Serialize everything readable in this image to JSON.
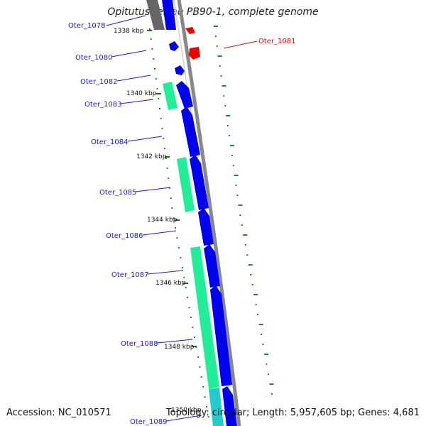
{
  "title": "Opitutus terrae PB90-1, complete genome",
  "footer": {
    "accession": "Accession: NC_010571",
    "topology": "Topology: circular; Length: 5,957,605 bp; Genes: 4,681"
  },
  "colors": {
    "forward_gene": "#0000ee",
    "reverse_gene": "#ee0000",
    "cds_forward": "#22ee99",
    "cds_other": "#22cccc",
    "backbone": "#888888",
    "gc_dots": "#228822",
    "label_forward": "#1a1acc",
    "label_reverse": "#cc1111",
    "other_gene": "#666666"
  },
  "kbp_ticks": [
    "1338 kbp",
    "1340 kbp",
    "1342 kbp",
    "1344 kbp",
    "1346 kbp",
    "1348 kbp",
    "1350 kbp"
  ],
  "gene_labels": [
    {
      "text": "Oter_1078",
      "strand": "forward"
    },
    {
      "text": "Oter_1080",
      "strand": "forward"
    },
    {
      "text": "Oter_1081",
      "strand": "reverse"
    },
    {
      "text": "Oter_1082",
      "strand": "forward"
    },
    {
      "text": "Oter_1083",
      "strand": "forward"
    },
    {
      "text": "Oter_1084",
      "strand": "forward"
    },
    {
      "text": "Oter_1085",
      "strand": "forward"
    },
    {
      "text": "Oter_1086",
      "strand": "forward"
    },
    {
      "text": "Oter_1087",
      "strand": "forward"
    },
    {
      "text": "Oter_1088",
      "strand": "forward"
    },
    {
      "text": "Oter_1089",
      "strand": "forward"
    }
  ]
}
